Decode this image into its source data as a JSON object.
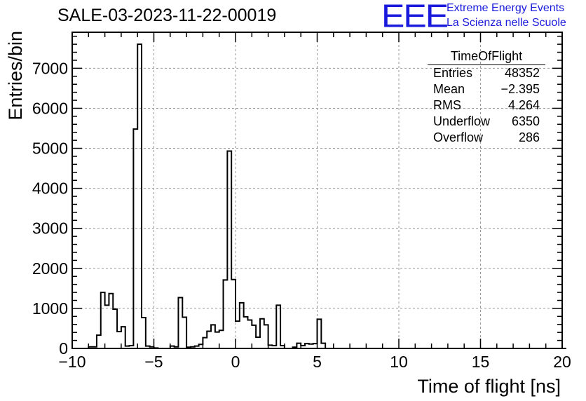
{
  "header": {
    "run_title": "SALE-03-2023-11-22-00019",
    "logo_text": "EEE",
    "logo_line1": "Extreme Energy Events",
    "logo_line2": "La Scienza nelle Scuole",
    "logo_color": "#1a1adc"
  },
  "stats_box": {
    "title": "TimeOfFlight",
    "rows": [
      {
        "label": "Entries",
        "value": "48352"
      },
      {
        "label": "Mean",
        "value": "−2.395"
      },
      {
        "label": "RMS",
        "value": "4.264"
      },
      {
        "label": "Underflow",
        "value": "6350"
      },
      {
        "label": "Overflow",
        "value": "286"
      }
    ]
  },
  "chart_data": {
    "type": "bar",
    "histogram": true,
    "title": "SALE-03-2023-11-22-00019",
    "xlabel": "Time of flight [ns]",
    "ylabel": "Entries/bin",
    "xlim": [
      -10,
      20
    ],
    "ylim": [
      0,
      7900
    ],
    "bin_width": 0.25,
    "x_ticks": [
      -10,
      -5,
      0,
      5,
      10,
      15,
      20
    ],
    "x_tick_labels": [
      "−10",
      "−5",
      "0",
      "5",
      "10",
      "15",
      "20"
    ],
    "y_ticks": [
      0,
      1000,
      2000,
      3000,
      4000,
      5000,
      6000,
      7000
    ],
    "y_tick_labels": [
      "0",
      "1000",
      "2000",
      "3000",
      "4000",
      "5000",
      "6000",
      "7000"
    ],
    "grid": true,
    "line_color": "#000000",
    "bin_edges_start": -9.0,
    "values": [
      40,
      40,
      330,
      1400,
      1080,
      1370,
      980,
      420,
      540,
      60,
      70,
      5480,
      7600,
      770,
      60,
      40,
      10,
      0,
      0,
      0,
      60,
      40,
      1270,
      780,
      30,
      40,
      60,
      100,
      270,
      430,
      590,
      410,
      450,
      1710,
      4930,
      1720,
      680,
      1140,
      790,
      710,
      580,
      280,
      740,
      590,
      80,
      70,
      1080,
      70,
      0,
      0,
      30,
      130,
      70,
      120,
      110,
      120,
      730,
      130,
      0,
      0,
      0,
      0,
      0,
      0,
      0,
      0,
      0,
      0,
      0,
      0,
      0,
      0,
      0,
      0,
      0,
      0,
      0,
      0,
      0,
      0,
      0,
      0,
      0,
      0,
      0,
      0,
      0,
      0,
      0,
      0,
      0,
      0,
      0,
      0,
      0,
      0,
      0,
      0,
      0,
      0,
      0,
      0,
      0,
      0,
      0,
      0,
      0,
      0,
      0,
      0,
      0,
      0,
      0,
      0,
      0,
      0,
      0
    ]
  }
}
